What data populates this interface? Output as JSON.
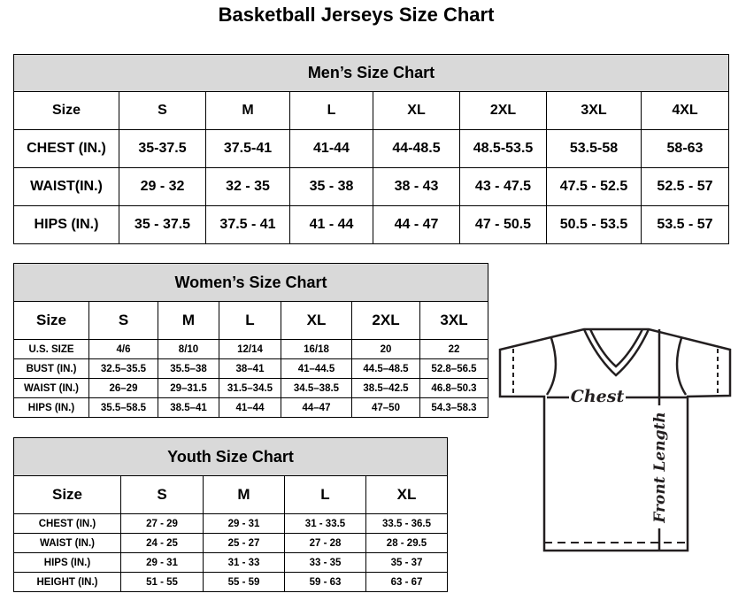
{
  "title": "Basketball Jerseys Size Chart",
  "men": {
    "heading": "Men’s Size Chart",
    "header": [
      "Size",
      "S",
      "M",
      "L",
      "XL",
      "2XL",
      "3XL",
      "4XL"
    ],
    "rows": [
      [
        "CHEST (IN.)",
        "35-37.5",
        "37.5-41",
        "41-44",
        "44-48.5",
        "48.5-53.5",
        "53.5-58",
        "58-63"
      ],
      [
        "WAIST(IN.)",
        "29 - 32",
        "32 - 35",
        "35 - 38",
        "38 - 43",
        "43 - 47.5",
        "47.5 - 52.5",
        "52.5 - 57"
      ],
      [
        "HIPS (IN.)",
        "35 - 37.5",
        "37.5 - 41",
        "41 - 44",
        "44 - 47",
        "47 - 50.5",
        "50.5 - 53.5",
        "53.5 - 57"
      ]
    ]
  },
  "women": {
    "heading": "Women’s Size Chart",
    "header": [
      "Size",
      "S",
      "M",
      "L",
      "XL",
      "2XL",
      "3XL"
    ],
    "rows": [
      [
        "U.S. SIZE",
        "4/6",
        "8/10",
        "12/14",
        "16/18",
        "20",
        "22"
      ],
      [
        "BUST (IN.)",
        "32.5–35.5",
        "35.5–38",
        "38–41",
        "41–44.5",
        "44.5–48.5",
        "52.8–56.5"
      ],
      [
        "WAIST (IN.)",
        "26–29",
        "29–31.5",
        "31.5–34.5",
        "34.5–38.5",
        "38.5–42.5",
        "46.8–50.3"
      ],
      [
        "HIPS (IN.)",
        "35.5–58.5",
        "38.5–41",
        "41–44",
        "44–47",
        "47–50",
        "54.3–58.3"
      ]
    ]
  },
  "youth": {
    "heading": "Youth Size Chart",
    "header": [
      "Size",
      "S",
      "M",
      "L",
      "XL"
    ],
    "rows": [
      [
        "CHEST (IN.)",
        "27 - 29",
        "29 - 31",
        "31 - 33.5",
        "33.5 - 36.5"
      ],
      [
        "WAIST (IN.)",
        "24 - 25",
        "25 - 27",
        "27 - 28",
        "28 - 29.5"
      ],
      [
        "HIPS (IN.)",
        "29 - 31",
        "31 - 33",
        "33 - 35",
        "35 - 37"
      ],
      [
        "HEIGHT (IN.)",
        "51 - 55",
        "55 - 59",
        "59 - 63",
        "63 - 67"
      ]
    ]
  },
  "diagram": {
    "chest_label": "Chest",
    "length_label": "Front Length"
  }
}
